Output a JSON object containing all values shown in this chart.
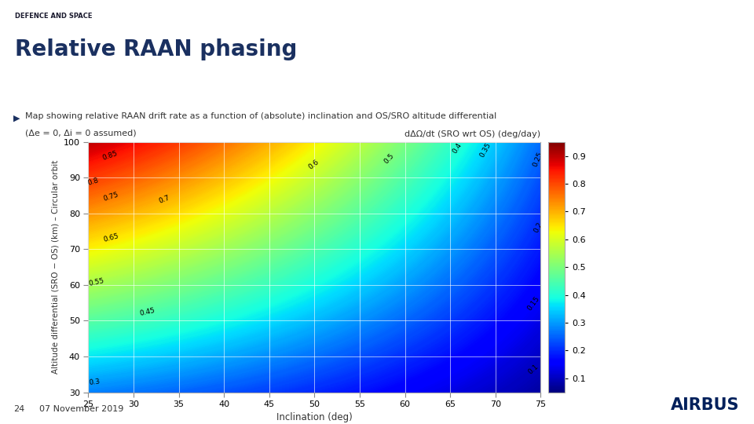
{
  "title_top": "DEFENCE AND SPACE",
  "title_main": "Relative RAAN phasing",
  "bullet_text": "Map showing relative RAAN drift rate as a function of (absolute) inclination and OS/SRO altitude differential",
  "bullet_text2": "(Δe = 0, Δi = 0 assumed)",
  "colorbar_title": "dΔΩ/dt (SRO wrt OS) (deg/day)",
  "xlabel": "Inclination (deg)",
  "ylabel": "Altitude differential (SRO − OS) (km) – Circular orbit",
  "xlim": [
    25,
    75
  ],
  "ylim": [
    30,
    100
  ],
  "xticks": [
    25,
    30,
    35,
    40,
    45,
    50,
    55,
    60,
    65,
    70,
    75
  ],
  "yticks": [
    30,
    40,
    50,
    60,
    70,
    80,
    90,
    100
  ],
  "contour_levels": [
    0.1,
    0.15,
    0.2,
    0.25,
    0.3,
    0.35,
    0.4,
    0.45,
    0.5,
    0.55,
    0.6,
    0.65,
    0.7,
    0.75,
    0.8,
    0.85,
    0.9
  ],
  "background_color": "#ffffff",
  "date_text": "07 November 2019",
  "page_num": "24"
}
